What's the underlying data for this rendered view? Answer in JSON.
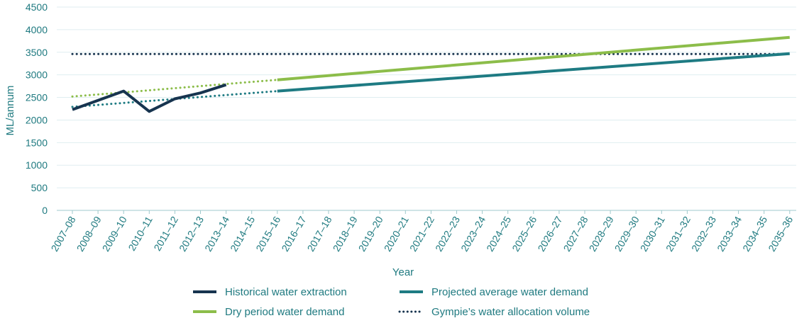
{
  "chart_data": {
    "type": "line",
    "xlabel": "Year",
    "ylabel": "ML/annum",
    "ylim": [
      0,
      4500
    ],
    "yticks": [
      0,
      500,
      1000,
      1500,
      2000,
      2500,
      3000,
      3500,
      4000,
      4500
    ],
    "grid": "horizontal",
    "legend_position": "bottom",
    "categories": [
      "2007–08",
      "2008–09",
      "2009–10",
      "2010–11",
      "2011–12",
      "2012–13",
      "2013–14",
      "2014–15",
      "2015–16",
      "2016–17",
      "2017–18",
      "2018–19",
      "2019–20",
      "2020–21",
      "2021–22",
      "2022–23",
      "2023–24",
      "2024–25",
      "2025–26",
      "2026–27",
      "2027–28",
      "2028–29",
      "2029–30",
      "2030–31",
      "2031–32",
      "2032–33",
      "2033–34",
      "2034–35",
      "2035–36"
    ],
    "series": [
      {
        "name": "Historical water extraction",
        "color": "#17344f",
        "style": "solid",
        "points": [
          [
            "2007–08",
            2230
          ],
          [
            "2009–10",
            2640
          ],
          [
            "2010–11",
            2190
          ],
          [
            "2011–12",
            2470
          ],
          [
            "2012–13",
            2600
          ],
          [
            "2013–14",
            2780
          ]
        ]
      },
      {
        "name": "Projected average water demand",
        "color": "#1e7b83",
        "style": "solid",
        "points": [
          [
            "2015–16",
            2640
          ],
          [
            "2035–36",
            3470
          ]
        ]
      },
      {
        "name": "Dry period water demand",
        "color": "#8cbd4a",
        "style": "solid",
        "points": [
          [
            "2015–16",
            2890
          ],
          [
            "2035–36",
            3830
          ]
        ]
      },
      {
        "name": "Gympie’s water allocation volume",
        "color": "#17344f",
        "style": "dotted",
        "points": [
          [
            "2007–08",
            3460
          ],
          [
            "2035–36",
            3460
          ]
        ]
      },
      {
        "name": "",
        "color": "#8cbd4a",
        "style": "dotted",
        "points": [
          [
            "2007–08",
            2520
          ],
          [
            "2015–16",
            2890
          ]
        ]
      },
      {
        "name": "",
        "color": "#1e7b83",
        "style": "dotted",
        "points": [
          [
            "2007–08",
            2290
          ],
          [
            "2015–16",
            2640
          ]
        ]
      }
    ],
    "legend": [
      {
        "series": 0,
        "style": "solid"
      },
      {
        "series": 1,
        "style": "solid"
      },
      {
        "series": 2,
        "style": "solid"
      },
      {
        "series": 3,
        "style": "dotted"
      }
    ]
  }
}
